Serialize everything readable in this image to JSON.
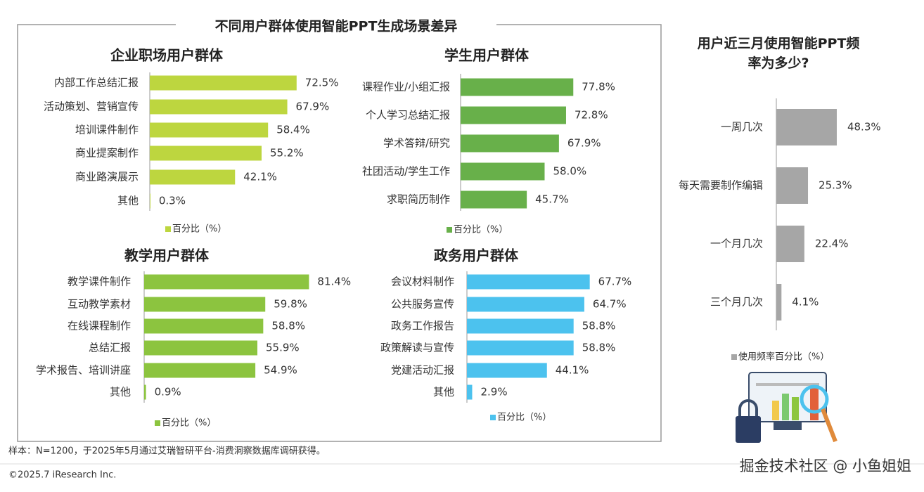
{
  "title": "不同用户群体使用智能PPT生成场景差异",
  "note": "样本：N=1200，于2025年5月通过艾瑞智研平台-消费洞察数据库调研获得。",
  "copyright": "©2025.7 iResearch Inc.",
  "watermark": "掘金技术社区 @ 小鱼姐姐",
  "chart_data": [
    {
      "type": "bar",
      "orientation": "horizontal",
      "title": "企业职场用户群体",
      "categories": [
        "内部工作总结汇报",
        "活动策划、营销宣传",
        "培训课件制作",
        "商业提案制作",
        "商业路演展示",
        "其他"
      ],
      "series": [
        {
          "name": "百分比（%）",
          "color": "#bdd63f",
          "values": [
            72.5,
            67.9,
            58.4,
            55.2,
            42.1,
            0.3
          ],
          "value_labels": [
            "72.5%",
            "67.9%",
            "58.4%",
            "55.2%",
            "42.1%",
            "0.3%"
          ]
        }
      ]
    },
    {
      "type": "bar",
      "orientation": "horizontal",
      "title": "学生用户群体",
      "categories": [
        "课程作业/小组汇报",
        "个人学习总结汇报",
        "学术答辩/研究",
        "社团活动/学生工作",
        "求职简历制作"
      ],
      "series": [
        {
          "name": "百分比（%）",
          "color": "#68b04a",
          "values": [
            77.8,
            72.8,
            67.9,
            58.0,
            45.7
          ],
          "value_labels": [
            "77.8%",
            "72.8%",
            "67.9%",
            "58.0%",
            "45.7%"
          ]
        }
      ]
    },
    {
      "type": "bar",
      "orientation": "horizontal",
      "title": "教学用户群体",
      "categories": [
        "教学课件制作",
        "互动教学素材",
        "在线课程制作",
        "总结汇报",
        "学术报告、培训讲座",
        "其他"
      ],
      "series": [
        {
          "name": "百分比（%）",
          "color": "#8cc43f",
          "values": [
            81.4,
            59.8,
            58.8,
            55.9,
            54.9,
            0.9
          ],
          "value_labels": [
            "81.4%",
            "59.8%",
            "58.8%",
            "55.9%",
            "54.9%",
            "0.9%"
          ]
        }
      ]
    },
    {
      "type": "bar",
      "orientation": "horizontal",
      "title": "政务用户群体",
      "categories": [
        "会议材料制作",
        "公共服务宣传",
        "政务工作报告",
        "政策解读与宣传",
        "党建活动汇报",
        "其他"
      ],
      "series": [
        {
          "name": "百分比（%）",
          "color": "#4cc2ee",
          "values": [
            67.7,
            64.7,
            58.8,
            58.8,
            44.1,
            2.9
          ],
          "value_labels": [
            "67.7%",
            "64.7%",
            "58.8%",
            "58.8%",
            "44.1%",
            "2.9%"
          ]
        }
      ]
    },
    {
      "type": "bar",
      "orientation": "horizontal",
      "title": "用户近三月使用智能PPT频率为多少?",
      "categories": [
        "一周几次",
        "每天需要制作编辑",
        "一个月几次",
        "三个月几次"
      ],
      "series": [
        {
          "name": "使用频率百分比（%）",
          "color": "#a6a6a6",
          "values": [
            48.3,
            25.3,
            22.4,
            4.1
          ],
          "value_labels": [
            "48.3%",
            "25.3%",
            "22.4%",
            "4.1%"
          ]
        }
      ]
    }
  ]
}
